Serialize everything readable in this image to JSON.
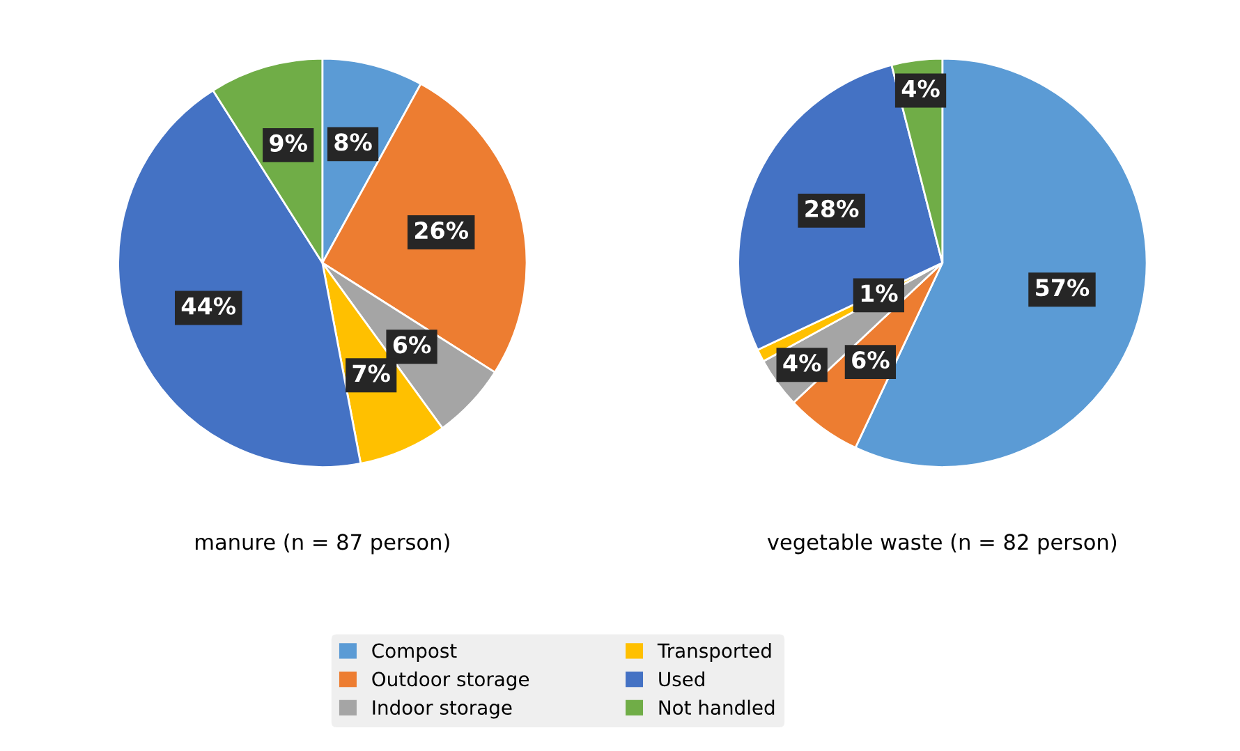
{
  "chart_data": [
    {
      "type": "pie",
      "xlabel": "manure (n = 87 person)",
      "categories": [
        "Compost",
        "Outdoor storage",
        "Indoor storage",
        "Transported",
        "Used",
        "Not handled"
      ],
      "values": [
        8,
        26,
        6,
        7,
        44,
        9
      ],
      "value_labels": [
        "8%",
        "26%",
        "6%",
        "7%",
        "44%",
        "9%"
      ],
      "colors": [
        "#5b9bd5",
        "#ed7d31",
        "#a5a5a5",
        "#ffc000",
        "#4472c4",
        "#70ad47"
      ],
      "legend": "bottom"
    },
    {
      "type": "pie",
      "xlabel": "vegetable waste (n = 82 person)",
      "categories": [
        null,
        null,
        null,
        null,
        null,
        null
      ],
      "values": [
        57,
        6,
        4,
        1,
        28,
        4
      ],
      "value_labels": [
        "57%",
        "6%",
        "4%",
        "1%",
        "28%",
        "4%"
      ],
      "colors": [
        "#5b9bd5",
        "#ed7d31",
        "#a5a5a5",
        "#ffc000",
        "#4472c4",
        "#70ad47"
      ]
    }
  ]
}
